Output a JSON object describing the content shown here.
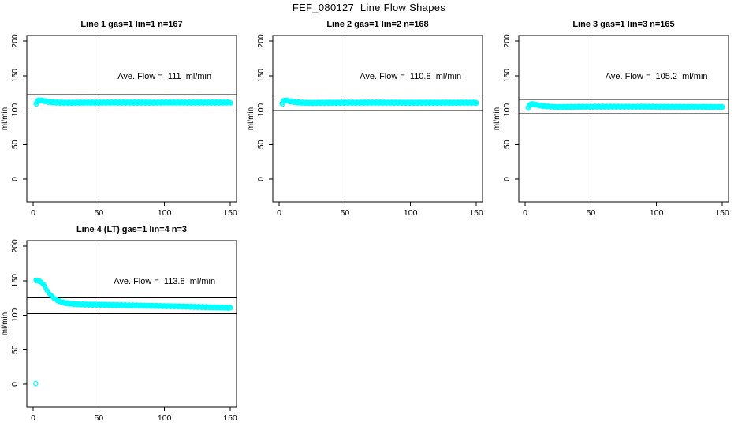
{
  "page_title": "FEF_080127  Line Flow Shapes",
  "colors": {
    "points": "#00ffff",
    "axis": "#000000",
    "background": "#ffffff"
  },
  "chart_data": [
    {
      "type": "scatter",
      "title": "Line 1 gas=1 lin=1 n=167",
      "xlabel": "",
      "ylabel": "ml/min",
      "x_ticks": [
        0,
        50,
        100,
        150
      ],
      "y_ticks": [
        0,
        50,
        100,
        150,
        200
      ],
      "xlim": [
        -5,
        155
      ],
      "ylim": [
        -33,
        208
      ],
      "grid": false,
      "legend": "none",
      "ave_flow_ml_min": 111,
      "annotation": "Ave. Flow =  111  ml/min",
      "annotation_at": {
        "x": 100,
        "y": 150
      },
      "vline_x": 50,
      "hlines": [
        122.1,
        99.9
      ],
      "series": [
        {
          "name": "line1-flow",
          "x": [
            2,
            3,
            4,
            5,
            6,
            8,
            10,
            12,
            15,
            20,
            25,
            30,
            40,
            50,
            60,
            70,
            80,
            90,
            100,
            110,
            120,
            130,
            140,
            150
          ],
          "y": [
            109.5,
            112.5,
            113.8,
            114.2,
            114.0,
            113.2,
            112.4,
            111.8,
            111.3,
            110.9,
            110.7,
            110.8,
            110.9,
            110.9,
            111.0,
            111.0,
            111.0,
            110.9,
            111.0,
            111.0,
            110.9,
            111.0,
            111.0,
            111.0
          ]
        }
      ],
      "outliers": []
    },
    {
      "type": "scatter",
      "title": "Line 2 gas=1 lin=2 n=168",
      "xlabel": "",
      "ylabel": "ml/min",
      "x_ticks": [
        0,
        50,
        100,
        150
      ],
      "y_ticks": [
        0,
        50,
        100,
        150,
        200
      ],
      "xlim": [
        -5,
        155
      ],
      "ylim": [
        -33,
        208
      ],
      "grid": false,
      "legend": "none",
      "ave_flow_ml_min": 110.8,
      "annotation": "Ave. Flow =  110.8  ml/min",
      "annotation_at": {
        "x": 100,
        "y": 150
      },
      "vline_x": 50,
      "hlines": [
        121.9,
        99.7
      ],
      "series": [
        {
          "name": "line2-flow",
          "x": [
            2,
            3,
            4,
            5,
            6,
            8,
            10,
            12,
            15,
            20,
            25,
            30,
            40,
            50,
            60,
            70,
            80,
            90,
            100,
            110,
            120,
            130,
            140,
            150
          ],
          "y": [
            109.0,
            112.8,
            113.9,
            114.1,
            113.7,
            112.9,
            112.1,
            111.5,
            111.0,
            110.6,
            110.5,
            110.6,
            110.7,
            110.8,
            110.8,
            110.9,
            110.8,
            110.8,
            110.7,
            110.8,
            110.8,
            110.7,
            110.8,
            110.7
          ]
        }
      ],
      "outliers": []
    },
    {
      "type": "scatter",
      "title": "Line 3 gas=1 lin=3 n=165",
      "xlabel": "",
      "ylabel": "ml/min",
      "x_ticks": [
        0,
        50,
        100,
        150
      ],
      "y_ticks": [
        0,
        50,
        100,
        150,
        200
      ],
      "xlim": [
        -5,
        155
      ],
      "ylim": [
        -33,
        208
      ],
      "grid": false,
      "legend": "none",
      "ave_flow_ml_min": 105.2,
      "annotation": "Ave. Flow =  105.2  ml/min",
      "annotation_at": {
        "x": 100,
        "y": 150
      },
      "vline_x": 50,
      "hlines": [
        115.7,
        94.7
      ],
      "series": [
        {
          "name": "line3-flow",
          "x": [
            2,
            3,
            4,
            5,
            6,
            8,
            10,
            12,
            15,
            20,
            25,
            30,
            40,
            50,
            60,
            70,
            80,
            90,
            100,
            110,
            120,
            130,
            140,
            150
          ],
          "y": [
            103.0,
            106.5,
            108.3,
            108.8,
            108.5,
            107.8,
            107.0,
            106.4,
            105.7,
            104.9,
            104.4,
            104.6,
            104.8,
            104.9,
            105.0,
            105.0,
            104.9,
            104.9,
            104.8,
            104.8,
            104.7,
            104.7,
            104.6,
            104.5
          ]
        }
      ],
      "outliers": []
    },
    {
      "type": "scatter",
      "title": "Line 4 (LT) gas=1 lin=4 n=3",
      "xlabel": "",
      "ylabel": "ml/min",
      "x_ticks": [
        0,
        50,
        100,
        150
      ],
      "y_ticks": [
        0,
        50,
        100,
        150,
        200
      ],
      "xlim": [
        -5,
        155
      ],
      "ylim": [
        -33,
        208
      ],
      "grid": false,
      "legend": "none",
      "ave_flow_ml_min": 113.8,
      "annotation": "Ave. Flow =  113.8  ml/min",
      "annotation_at": {
        "x": 100,
        "y": 150
      },
      "vline_x": 50,
      "hlines": [
        125.2,
        102.4
      ],
      "series": [
        {
          "name": "line4-flow",
          "x": [
            2,
            3,
            4,
            5,
            6,
            8,
            10,
            12,
            15,
            18,
            20,
            25,
            30,
            35,
            40,
            50,
            60,
            70,
            80,
            90,
            100,
            110,
            120,
            130,
            140,
            150
          ],
          "y": [
            150.0,
            150.2,
            149.6,
            148.8,
            147.6,
            144.0,
            137.0,
            131.5,
            125.5,
            121.5,
            120.0,
            117.3,
            116.3,
            115.8,
            115.5,
            115.2,
            114.8,
            114.4,
            114.0,
            113.6,
            113.2,
            112.8,
            112.3,
            111.8,
            111.3,
            110.8
          ]
        }
      ],
      "outliers": [
        {
          "x": 2,
          "y": 1
        }
      ]
    }
  ]
}
